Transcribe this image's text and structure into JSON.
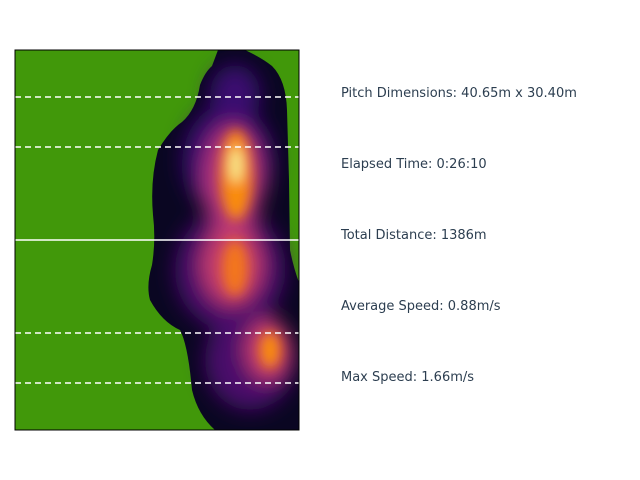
{
  "chart_data": {
    "type": "heatmap",
    "colormap": "inferno",
    "background_color": "#41980a",
    "line_color": "#ffffff",
    "title": "",
    "xlabel": "",
    "ylabel": ""
  },
  "stats": [
    {
      "label": "Pitch Dimensions: 40.65m x 30.40m"
    },
    {
      "label": "Elapsed Time: 0:26:10"
    },
    {
      "label": "Total Distance: 1386m"
    },
    {
      "label": "Average Speed: 0.88m/s"
    },
    {
      "label": "Max Speed: 1.66m/s"
    }
  ]
}
